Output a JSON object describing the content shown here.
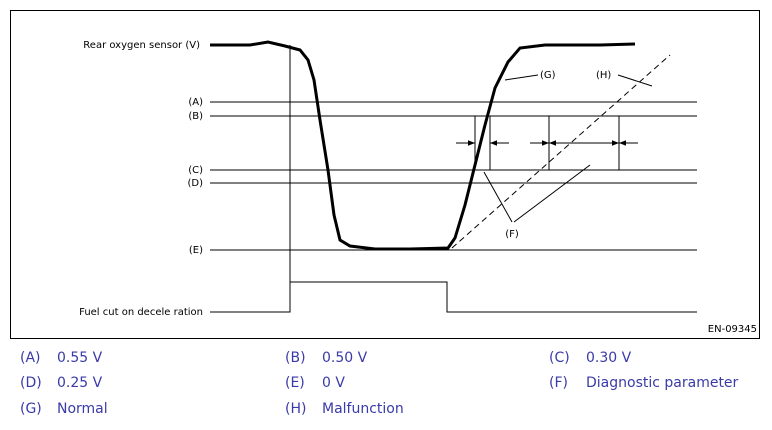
{
  "diagram": {
    "y_label": "Rear oxygen sensor (V)",
    "levels": [
      "(A)",
      "(B)",
      "(C)",
      "(D)",
      "(E)"
    ],
    "fuel_label": "Fuel cut on decele ration",
    "curve_labels": {
      "g": "(G)",
      "h": "(H)",
      "f": "(F)"
    },
    "figure_id": "EN-09345"
  },
  "legend": [
    {
      "code": "(A)",
      "text": "0.55 V"
    },
    {
      "code": "(B)",
      "text": "0.50 V"
    },
    {
      "code": "(C)",
      "text": "0.30 V"
    },
    {
      "code": "(D)",
      "text": "0.25 V"
    },
    {
      "code": "(E)",
      "text": "0 V"
    },
    {
      "code": "(F)",
      "text": "Diagnostic parameter"
    },
    {
      "code": "(G)",
      "text": "Normal"
    },
    {
      "code": "(H)",
      "text": "Malfunction"
    }
  ]
}
